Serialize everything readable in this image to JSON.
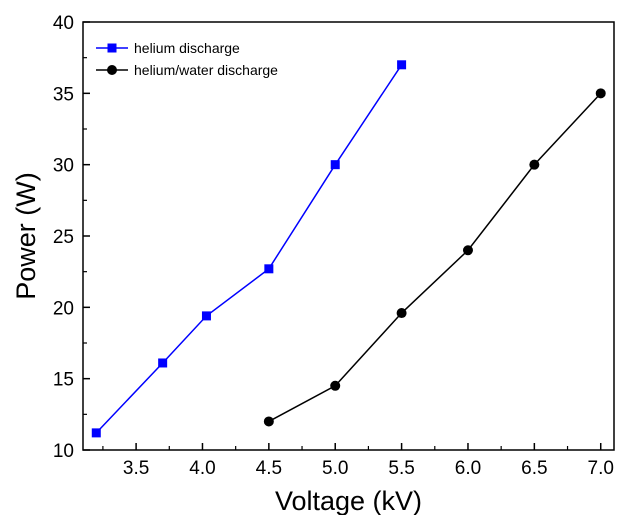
{
  "chart_data": {
    "type": "line",
    "title": "",
    "xlabel": "Voltage (kV)",
    "ylabel": "Power (W)",
    "xlim": [
      3.1,
      7.1
    ],
    "ylim": [
      10,
      40
    ],
    "x_ticks": [
      3.5,
      4.0,
      4.5,
      5.0,
      5.5,
      6.0,
      6.5,
      7.0
    ],
    "x_tick_labels": [
      "3.5",
      "4.0",
      "4.5",
      "5.0",
      "5.5",
      "6.0",
      "6.5",
      "7.0"
    ],
    "y_ticks": [
      10,
      15,
      20,
      25,
      30,
      35,
      40
    ],
    "y_tick_labels": [
      "10",
      "15",
      "20",
      "25",
      "30",
      "35",
      "40"
    ],
    "grid": false,
    "legend_position": "top-left",
    "series": [
      {
        "name": "helium discharge",
        "color": "#0000ff",
        "marker": "square",
        "x": [
          3.2,
          3.7,
          4.03,
          4.5,
          5.0,
          5.5
        ],
        "y": [
          11.2,
          16.1,
          19.4,
          22.7,
          30.0,
          37.0
        ]
      },
      {
        "name": "helium/water discharge",
        "color": "#000000",
        "marker": "circle",
        "x": [
          4.5,
          5.0,
          5.5,
          6.0,
          6.5,
          7.0
        ],
        "y": [
          12.0,
          14.5,
          19.6,
          24.0,
          30.0,
          35.0
        ]
      }
    ]
  }
}
